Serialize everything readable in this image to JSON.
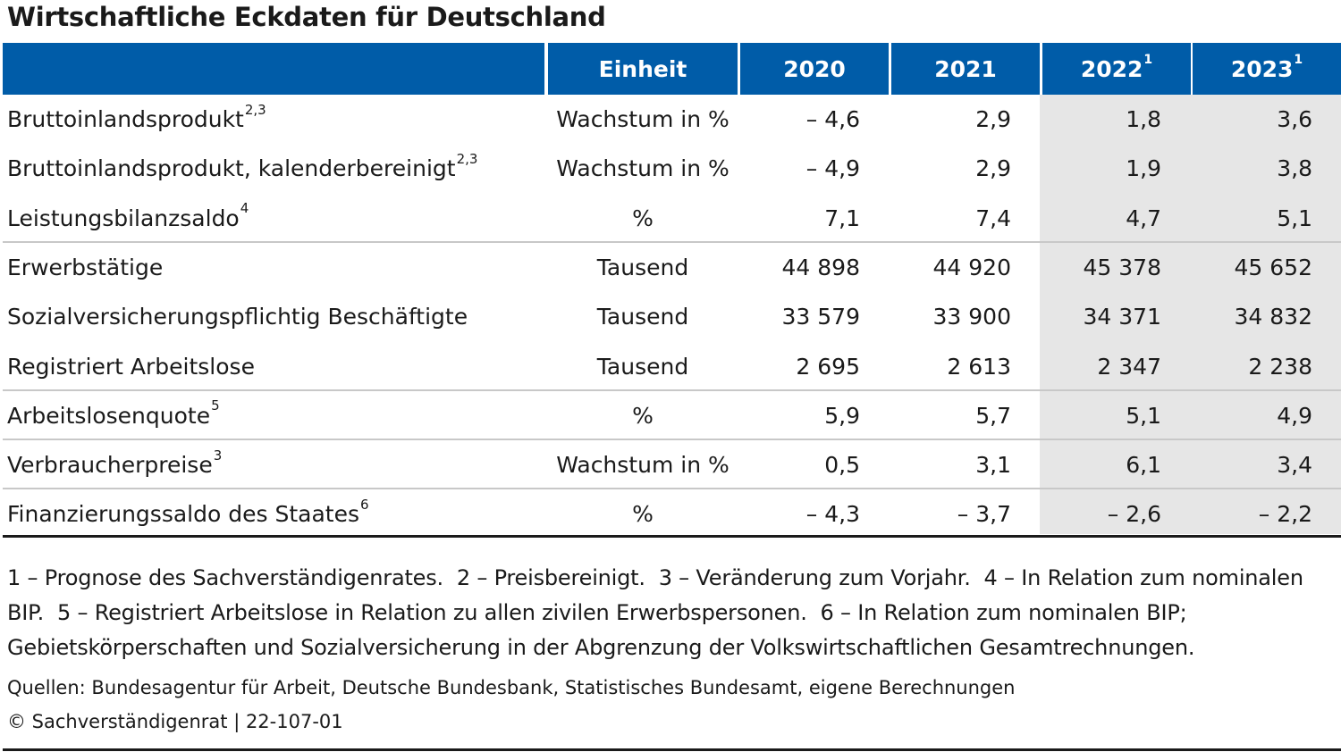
{
  "title": "Wirtschaftliche Eckdaten für Deutschland",
  "chart_data": {
    "type": "table",
    "columns": [
      {
        "label": "",
        "sup": ""
      },
      {
        "label": "Einheit",
        "sup": ""
      },
      {
        "label": "2020",
        "sup": ""
      },
      {
        "label": "2021",
        "sup": ""
      },
      {
        "label": "2022",
        "sup": "1"
      },
      {
        "label": "2023",
        "sup": "1"
      }
    ],
    "rows": [
      {
        "label": "Bruttoinlandsprodukt",
        "sup": "2,3",
        "unit": "Wachstum in %",
        "values": [
          "– 4,6",
          "2,9",
          "1,8",
          "3,6"
        ]
      },
      {
        "label": "Bruttoinlandsprodukt, kalenderbereinigt",
        "sup": "2,3",
        "unit": "Wachstum in %",
        "values": [
          "– 4,9",
          "2,9",
          "1,9",
          "3,8"
        ]
      },
      {
        "label": "Leistungsbilanzsaldo",
        "sup": "4",
        "unit": "%",
        "values": [
          "7,1",
          "7,4",
          "4,7",
          "5,1"
        ]
      },
      {
        "label": "Erwerbstätige",
        "sup": "",
        "unit": "Tausend",
        "values": [
          "44 898",
          "44 920",
          "45 378",
          "45 652"
        ]
      },
      {
        "label": "Sozialversicherungspflichtig Beschäftigte",
        "sup": "",
        "unit": "Tausend",
        "values": [
          "33 579",
          "33 900",
          "34 371",
          "34 832"
        ]
      },
      {
        "label": "Registriert Arbeitslose",
        "sup": "",
        "unit": "Tausend",
        "values": [
          "2 695",
          "2 613",
          "2 347",
          "2 238"
        ]
      },
      {
        "label": "Arbeitslosenquote",
        "sup": "5",
        "unit": "%",
        "values": [
          "5,9",
          "5,7",
          "5,1",
          "4,9"
        ]
      },
      {
        "label": "Verbraucherpreise",
        "sup": "3",
        "unit": "Wachstum in %",
        "values": [
          "0,5",
          "3,1",
          "6,1",
          "3,4"
        ]
      },
      {
        "label": "Finanzierungssaldo des Staates",
        "sup": "6",
        "unit": "%",
        "values": [
          "– 4,3",
          "– 3,7",
          "– 2,6",
          "– 2,2"
        ]
      }
    ]
  },
  "footnotes": [
    "1 – Prognose des Sachverständigenrates.",
    "2 – Preisbereinigt.",
    "3 – Veränderung zum Vorjahr.",
    "4 – In Relation zum nominalen BIP.",
    "5 – Registriert Arbeitslose in Relation zu allen zivilen Erwerbspersonen.",
    "6 – In Relation zum nominalen BIP; Gebietskörperschaften und Sozialversicherung in der Abgrenzung der Volkswirtschaftlichen Gesamtrechnungen."
  ],
  "sources": "Quellen: Bundesagentur für Arbeit, Deutsche Bundesbank, Statistisches Bundesamt, eigene Berechnungen",
  "copyright": "© Sachverständigenrat | 22-107-01",
  "colors": {
    "header": "#005ca8",
    "forecast_shade": "#e6e6e6",
    "rule": "#1a1a1a",
    "row_line": "#c8c8c8"
  }
}
